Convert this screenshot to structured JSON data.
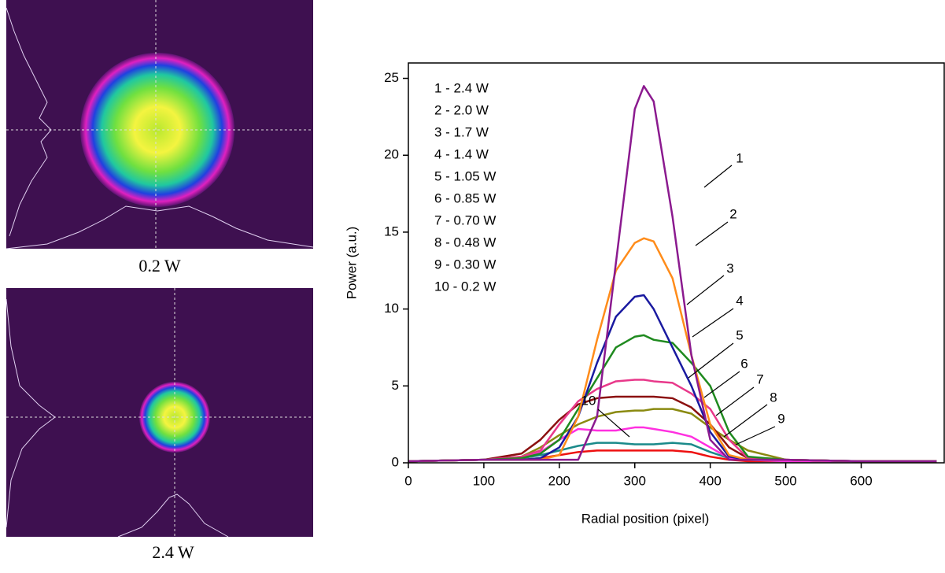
{
  "images": [
    {
      "caption": "0.2 W"
    },
    {
      "caption": "2.4 W"
    }
  ],
  "chart_data": {
    "type": "line",
    "xlabel": "Radial position (pixel)",
    "ylabel": "Power (a.u.)",
    "x": [
      0,
      100,
      150,
      175,
      200,
      225,
      250,
      275,
      300,
      312,
      325,
      350,
      375,
      400,
      425,
      450,
      500,
      600,
      700
    ],
    "series": [
      {
        "name": "1 - 2.4 W",
        "color": "#8b1a8f",
        "values": [
          0.1,
          0.2,
          0.2,
          0.2,
          0.2,
          0.2,
          3,
          13,
          23,
          24.5,
          23.5,
          16,
          7,
          1.5,
          0.2,
          0.2,
          0.2,
          0.1,
          0.1
        ]
      },
      {
        "name": "2 - 2.0 W",
        "color": "#ff8c1a",
        "values": [
          0.1,
          0.2,
          0.2,
          0.2,
          0.5,
          3,
          8,
          12.5,
          14.3,
          14.6,
          14.4,
          12,
          7,
          2.5,
          0.5,
          0.2,
          0.2,
          0.1,
          0.1
        ]
      },
      {
        "name": "3 - 1.7 W",
        "color": "#1a1aa0",
        "values": [
          0.1,
          0.2,
          0.2,
          0.3,
          1,
          3,
          6.5,
          9.5,
          10.8,
          10.9,
          10,
          7.5,
          5,
          2,
          0.4,
          0.2,
          0.2,
          0.1,
          0.1
        ]
      },
      {
        "name": "4 - 1.4 W",
        "color": "#1f8a1f",
        "values": [
          0.1,
          0.2,
          0.3,
          0.6,
          1.5,
          3.5,
          5.5,
          7.5,
          8.2,
          8.3,
          8,
          7.8,
          6.5,
          5,
          2,
          0.4,
          0.2,
          0.1,
          0.1
        ]
      },
      {
        "name": "5 - 1.05 W",
        "color": "#e8388a",
        "values": [
          0.1,
          0.2,
          0.4,
          0.8,
          2.5,
          4,
          4.8,
          5.3,
          5.4,
          5.4,
          5.3,
          5.2,
          4.5,
          3.5,
          1.5,
          0.3,
          0.2,
          0.1,
          0.1
        ]
      },
      {
        "name": "6 - 0.85 W",
        "color": "#8b1010",
        "values": [
          0.1,
          0.2,
          0.6,
          1.5,
          2.8,
          3.8,
          4.2,
          4.3,
          4.3,
          4.3,
          4.3,
          4.2,
          3.6,
          2.5,
          1,
          0.3,
          0.2,
          0.1,
          0.1
        ]
      },
      {
        "name": "7 - 0.70 W",
        "color": "#8a8a10",
        "values": [
          0.1,
          0.2,
          0.4,
          1,
          1.8,
          2.5,
          3,
          3.3,
          3.4,
          3.4,
          3.5,
          3.5,
          3.2,
          2.3,
          1.5,
          0.8,
          0.2,
          0.1,
          0.1
        ]
      },
      {
        "name": "8 - 0.48 W",
        "color": "#ff30e0",
        "values": [
          0.1,
          0.2,
          0.3,
          0.7,
          1.5,
          2.2,
          2.1,
          2.1,
          2.3,
          2.3,
          2.2,
          2,
          1.7,
          1,
          0.3,
          0.2,
          0.1,
          0.1,
          0.1
        ]
      },
      {
        "name": "9 - 0.30 W",
        "color": "#1a8a8a",
        "values": [
          0.1,
          0.2,
          0.3,
          0.5,
          0.8,
          1.1,
          1.3,
          1.3,
          1.2,
          1.2,
          1.2,
          1.3,
          1.2,
          0.7,
          0.3,
          0.2,
          0.1,
          0.1,
          0.1
        ]
      },
      {
        "name": "10 - 0.2 W",
        "color": "#ee1010",
        "values": [
          0.1,
          0.2,
          0.2,
          0.3,
          0.5,
          0.7,
          0.8,
          0.8,
          0.8,
          0.8,
          0.8,
          0.8,
          0.7,
          0.4,
          0.2,
          0.1,
          0.1,
          0.1,
          0.1
        ]
      }
    ],
    "curve_labels": [
      "1",
      "2",
      "3",
      "4",
      "5",
      "6",
      "7",
      "8",
      "9",
      "10"
    ],
    "xlim": [
      0,
      710
    ],
    "xticks": [
      0,
      100,
      200,
      300,
      400,
      500,
      600
    ],
    "ylim": [
      0,
      26
    ],
    "yticks": [
      0,
      5,
      10,
      15,
      20,
      25
    ]
  }
}
